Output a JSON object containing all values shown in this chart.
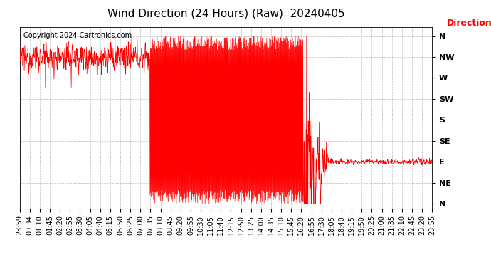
{
  "title": "Wind Direction (24 Hours) (Raw)  20240405",
  "copyright_text": "Copyright 2024 Cartronics.com",
  "legend_label": "Direction",
  "background_color": "#ffffff",
  "plot_bg_color": "#ffffff",
  "line_color": "#ff0000",
  "grid_color": "#aaaaaa",
  "ytick_labels_right": [
    "N",
    "NW",
    "W",
    "SW",
    "S",
    "SE",
    "E",
    "NE",
    "N"
  ],
  "ytick_values": [
    360,
    315,
    270,
    225,
    180,
    135,
    90,
    45,
    0
  ],
  "ylim": [
    -10,
    380
  ],
  "xtick_labels": [
    "23:59",
    "00:34",
    "01:10",
    "01:45",
    "02:20",
    "02:55",
    "03:30",
    "04:05",
    "04:40",
    "05:15",
    "05:50",
    "06:25",
    "07:00",
    "07:35",
    "08:10",
    "08:45",
    "09:20",
    "09:55",
    "10:30",
    "11:05",
    "11:40",
    "12:15",
    "12:50",
    "13:25",
    "14:00",
    "14:35",
    "15:10",
    "15:45",
    "16:20",
    "16:55",
    "17:30",
    "18:05",
    "18:40",
    "19:15",
    "19:50",
    "20:25",
    "21:00",
    "21:35",
    "22:10",
    "22:45",
    "23:20",
    "23:55"
  ],
  "title_fontsize": 11,
  "axis_label_fontsize": 8,
  "tick_fontsize": 7,
  "copyright_fontsize": 7,
  "legend_fontsize": 9
}
